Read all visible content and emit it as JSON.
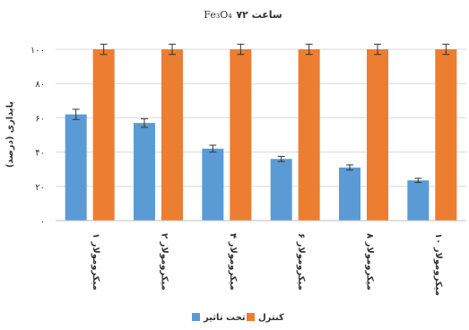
{
  "chart_data": {
    "type": "bar",
    "title": "۷۲ ساعت",
    "title_formula": "Fe₃O₄",
    "ylabel": "پایداری (درصد)",
    "xlabel": "",
    "ylim": [
      0,
      100
    ],
    "yticks": [
      0,
      20,
      40,
      60,
      80,
      100
    ],
    "ytick_labels": [
      "۰",
      "۲۰",
      "۴۰",
      "۶۰",
      "۸۰",
      "۱۰۰"
    ],
    "grid": true,
    "legend_position": "bottom",
    "categories": [
      "۱ میکرومولار",
      "۲ میکرومولار",
      "۴ میکرومولار",
      "۶ میکرومولار",
      "۸ میکرومولار",
      "۱۰ میکرومولار"
    ],
    "series": [
      {
        "name": "تحت تاثیر",
        "color": "#5B9BD5",
        "values": [
          62,
          57,
          42,
          36,
          31,
          23.5
        ],
        "errors": [
          3,
          2.5,
          2,
          1.5,
          1.5,
          1.2
        ]
      },
      {
        "name": "کنترل",
        "color": "#ED7D31",
        "values": [
          100,
          100,
          100,
          100,
          100,
          100
        ],
        "errors": [
          3,
          3,
          3,
          3,
          3,
          3
        ]
      }
    ]
  }
}
